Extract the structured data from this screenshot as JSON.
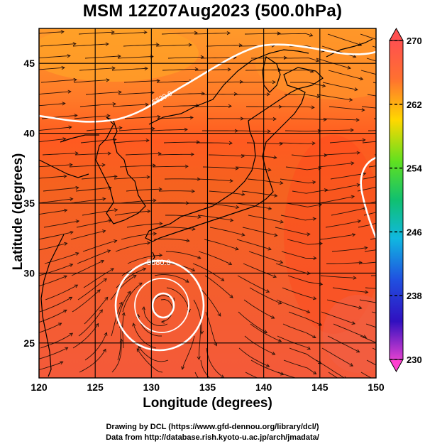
{
  "title": "MSM 12Z07Aug2023 (500.0hPa)",
  "axes": {
    "xlabel": "Longitude (degrees)",
    "ylabel": "Latitude  (degrees)",
    "xticks": [
      "120",
      "125",
      "130",
      "135",
      "140",
      "145",
      "150"
    ],
    "yticks": [
      "25",
      "30",
      "35",
      "40",
      "45"
    ],
    "xlim": [
      120,
      150
    ],
    "ylim": [
      22.5,
      47.5
    ]
  },
  "colorbar": {
    "ticks": [
      "270",
      "262",
      "254",
      "246",
      "238",
      "230"
    ],
    "range": [
      230,
      270
    ]
  },
  "contours": [
    {
      "label": "5820.0",
      "level": 5820
    },
    {
      "label": "5880.0",
      "level": 5880
    }
  ],
  "credits": {
    "line1": "Drawing by DCL (https://www.gfd-dennou.org/library/dcl/)",
    "line2": "Data from http://database.rish.kyoto-u.ac.jp/arch/jmadata/"
  },
  "colors": {
    "warm_high": "#f5621f",
    "warm_low": "#ff9040",
    "orange": "#ffa020",
    "deep": "#e8401a"
  }
}
